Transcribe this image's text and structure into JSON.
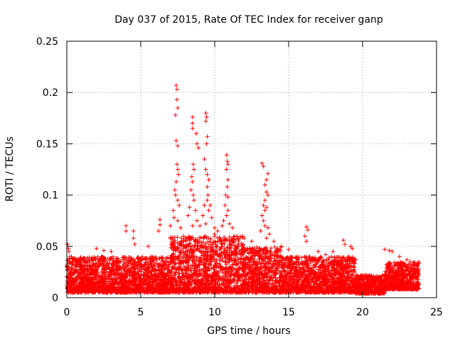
{
  "chart_data": {
    "type": "scatter",
    "title": "Day 037 of 2015, Rate Of TEC Index for receiver ganp",
    "xlabel": "GPS time / hours",
    "ylabel": "ROTI / TECUs",
    "xlim": [
      0,
      25
    ],
    "ylim": [
      0,
      0.25
    ],
    "grid": true,
    "marker": "+",
    "series_color": "#ff0000",
    "x_ticks": [
      0,
      5,
      10,
      15,
      20,
      25
    ],
    "x_tick_labels": [
      "0",
      "5",
      "10",
      "15",
      "20",
      "25"
    ],
    "y_ticks": [
      0,
      0.05,
      0.1,
      0.15,
      0.2,
      0.25
    ],
    "y_tick_labels": [
      "0",
      "0.05",
      "0.1",
      "0.15",
      "0.2",
      "0.25"
    ],
    "baseline_band": [
      {
        "x_start": 0.0,
        "x_end": 7.0,
        "y_min": 0.005,
        "y_max": 0.04
      },
      {
        "x_start": 7.0,
        "x_end": 12.0,
        "y_min": 0.005,
        "y_max": 0.06
      },
      {
        "x_start": 12.0,
        "x_end": 14.5,
        "y_min": 0.005,
        "y_max": 0.05
      },
      {
        "x_start": 14.5,
        "x_end": 19.5,
        "y_min": 0.005,
        "y_max": 0.04
      },
      {
        "x_start": 19.5,
        "x_end": 21.5,
        "y_min": 0.004,
        "y_max": 0.022
      },
      {
        "x_start": 21.5,
        "x_end": 23.8,
        "y_min": 0.008,
        "y_max": 0.035
      }
    ],
    "points": [
      [
        0.05,
        0.052
      ],
      [
        0.1,
        0.048
      ],
      [
        0.15,
        0.045
      ],
      [
        0.2,
        0.04
      ],
      [
        4.0,
        0.07
      ],
      [
        4.0,
        0.065
      ],
      [
        4.5,
        0.065
      ],
      [
        4.5,
        0.058
      ],
      [
        4.6,
        0.052
      ],
      [
        6.3,
        0.076
      ],
      [
        6.3,
        0.071
      ],
      [
        6.2,
        0.065
      ],
      [
        7.4,
        0.207
      ],
      [
        7.45,
        0.203
      ],
      [
        7.45,
        0.193
      ],
      [
        7.5,
        0.185
      ],
      [
        7.35,
        0.178
      ],
      [
        7.4,
        0.153
      ],
      [
        7.5,
        0.148
      ],
      [
        7.45,
        0.13
      ],
      [
        7.5,
        0.125
      ],
      [
        7.55,
        0.12
      ],
      [
        7.4,
        0.113
      ],
      [
        7.3,
        0.105
      ],
      [
        7.35,
        0.1
      ],
      [
        7.5,
        0.095
      ],
      [
        7.6,
        0.09
      ],
      [
        7.2,
        0.085
      ],
      [
        7.25,
        0.078
      ],
      [
        7.5,
        0.075
      ],
      [
        7.0,
        0.07
      ],
      [
        7.7,
        0.068
      ],
      [
        8.5,
        0.176
      ],
      [
        8.5,
        0.17
      ],
      [
        8.5,
        0.165
      ],
      [
        8.55,
        0.13
      ],
      [
        8.6,
        0.125
      ],
      [
        8.45,
        0.118
      ],
      [
        8.5,
        0.113
      ],
      [
        8.4,
        0.105
      ],
      [
        8.55,
        0.1
      ],
      [
        8.6,
        0.095
      ],
      [
        8.3,
        0.088
      ],
      [
        8.7,
        0.085
      ],
      [
        8.2,
        0.08
      ],
      [
        8.8,
        0.075
      ],
      [
        8.5,
        0.07
      ],
      [
        8.75,
        0.16
      ],
      [
        8.8,
        0.15
      ],
      [
        8.9,
        0.146
      ],
      [
        9.4,
        0.18
      ],
      [
        9.45,
        0.176
      ],
      [
        9.4,
        0.172
      ],
      [
        9.5,
        0.157
      ],
      [
        9.45,
        0.15
      ],
      [
        9.3,
        0.135
      ],
      [
        9.4,
        0.125
      ],
      [
        9.5,
        0.12
      ],
      [
        9.6,
        0.115
      ],
      [
        9.5,
        0.108
      ],
      [
        9.55,
        0.1
      ],
      [
        9.5,
        0.095
      ],
      [
        9.3,
        0.09
      ],
      [
        9.7,
        0.09
      ],
      [
        9.6,
        0.085
      ],
      [
        9.2,
        0.08
      ],
      [
        9.8,
        0.078
      ],
      [
        9.4,
        0.072
      ],
      [
        9.0,
        0.07
      ],
      [
        10.0,
        0.068
      ],
      [
        10.8,
        0.139
      ],
      [
        10.85,
        0.133
      ],
      [
        10.9,
        0.13
      ],
      [
        10.8,
        0.125
      ],
      [
        10.9,
        0.115
      ],
      [
        10.85,
        0.108
      ],
      [
        10.75,
        0.1
      ],
      [
        10.9,
        0.098
      ],
      [
        10.7,
        0.09
      ],
      [
        10.9,
        0.085
      ],
      [
        10.8,
        0.08
      ],
      [
        10.6,
        0.075
      ],
      [
        11.0,
        0.072
      ],
      [
        10.5,
        0.07
      ],
      [
        11.2,
        0.068
      ],
      [
        10.2,
        0.065
      ],
      [
        10.0,
        0.062
      ],
      [
        11.5,
        0.06
      ],
      [
        13.2,
        0.131
      ],
      [
        13.3,
        0.128
      ],
      [
        13.6,
        0.121
      ],
      [
        13.5,
        0.115
      ],
      [
        13.4,
        0.11
      ],
      [
        13.5,
        0.103
      ],
      [
        13.6,
        0.1
      ],
      [
        13.4,
        0.095
      ],
      [
        13.3,
        0.09
      ],
      [
        13.5,
        0.088
      ],
      [
        13.4,
        0.085
      ],
      [
        13.2,
        0.08
      ],
      [
        13.3,
        0.075
      ],
      [
        13.4,
        0.07
      ],
      [
        13.6,
        0.068
      ],
      [
        13.1,
        0.065
      ],
      [
        13.7,
        0.062
      ],
      [
        13.5,
        0.058
      ],
      [
        16.2,
        0.069
      ],
      [
        16.3,
        0.066
      ],
      [
        16.1,
        0.06
      ],
      [
        16.2,
        0.055
      ],
      [
        18.7,
        0.056
      ],
      [
        18.8,
        0.052
      ],
      [
        19.2,
        0.05
      ],
      [
        19.3,
        0.048
      ],
      [
        21.5,
        0.047
      ],
      [
        21.8,
        0.046
      ],
      [
        22.0,
        0.045
      ],
      [
        22.5,
        0.04
      ],
      [
        23.0,
        0.037
      ],
      [
        2.0,
        0.048
      ],
      [
        2.5,
        0.046
      ],
      [
        3.0,
        0.045
      ],
      [
        5.5,
        0.05
      ],
      [
        12.0,
        0.058
      ],
      [
        12.5,
        0.055
      ],
      [
        14.0,
        0.055
      ],
      [
        14.5,
        0.05
      ],
      [
        15.0,
        0.047
      ],
      [
        17.0,
        0.045
      ],
      [
        17.5,
        0.042
      ],
      [
        18.0,
        0.045
      ]
    ]
  }
}
